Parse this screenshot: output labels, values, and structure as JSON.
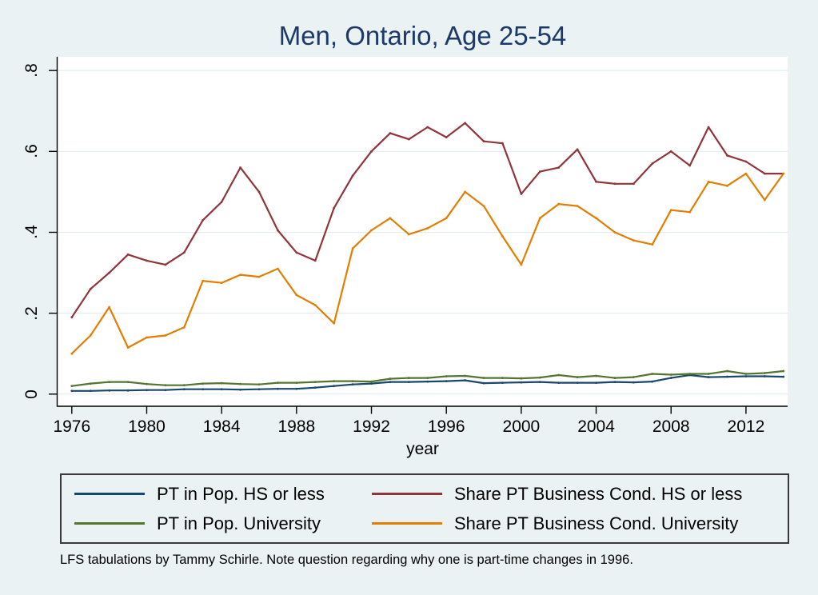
{
  "page": {
    "background": "#EAF2F3",
    "plot_background": "#FFFFFF",
    "grid_color": "#E3EDEF",
    "axis_color": "#000000",
    "title_color": "#1B3A6B",
    "legend_border_color": "#3A3A3A"
  },
  "footnote": "LFS tabulations by Tammy Schirle. Note question regarding why one is part-time changes in 1996.",
  "chart_data": {
    "type": "line",
    "title": "Men, Ontario, Age 25-54",
    "xlabel": "year",
    "ylabel": "",
    "xlim": [
      1975.3,
      2014.5
    ],
    "ylim": [
      0,
      0.8
    ],
    "grid": true,
    "legend_position": "bottom-box-2col",
    "x_ticks": [
      1976,
      1980,
      1984,
      1988,
      1992,
      1996,
      2000,
      2004,
      2008,
      2012
    ],
    "y_ticks": [
      0,
      0.2,
      0.4,
      0.6,
      0.8
    ],
    "y_tick_labels": [
      "0",
      ".2",
      ".4",
      ".6",
      ".8"
    ],
    "x": [
      1976,
      1977,
      1978,
      1979,
      1980,
      1981,
      1982,
      1983,
      1984,
      1985,
      1986,
      1987,
      1988,
      1989,
      1990,
      1991,
      1992,
      1993,
      1994,
      1995,
      1996,
      1997,
      1998,
      1999,
      2000,
      2001,
      2002,
      2003,
      2004,
      2005,
      2006,
      2007,
      2008,
      2009,
      2010,
      2011,
      2012,
      2013,
      2014
    ],
    "series": [
      {
        "name": "PT in Pop. HS or less",
        "color": "#1A476F",
        "values": [
          0.008,
          0.008,
          0.009,
          0.009,
          0.01,
          0.01,
          0.012,
          0.012,
          0.012,
          0.011,
          0.012,
          0.013,
          0.013,
          0.016,
          0.02,
          0.024,
          0.026,
          0.03,
          0.03,
          0.031,
          0.032,
          0.034,
          0.027,
          0.028,
          0.029,
          0.03,
          0.028,
          0.028,
          0.028,
          0.03,
          0.029,
          0.031,
          0.04,
          0.047,
          0.042,
          0.043,
          0.044,
          0.044,
          0.043
        ]
      },
      {
        "name": "Share PT Business Cond. HS or less",
        "color": "#90353B",
        "values": [
          0.19,
          0.26,
          0.3,
          0.345,
          0.33,
          0.32,
          0.35,
          0.43,
          0.475,
          0.56,
          0.5,
          0.405,
          0.35,
          0.33,
          0.46,
          0.54,
          0.6,
          0.645,
          0.63,
          0.66,
          0.635,
          0.67,
          0.625,
          0.62,
          0.495,
          0.55,
          0.56,
          0.605,
          0.525,
          0.52,
          0.52,
          0.57,
          0.6,
          0.565,
          0.66,
          0.59,
          0.575,
          0.545,
          0.545
        ]
      },
      {
        "name": "PT in Pop. University",
        "color": "#55752F",
        "values": [
          0.02,
          0.026,
          0.03,
          0.03,
          0.025,
          0.022,
          0.022,
          0.026,
          0.027,
          0.025,
          0.024,
          0.028,
          0.028,
          0.03,
          0.032,
          0.032,
          0.031,
          0.038,
          0.04,
          0.04,
          0.044,
          0.045,
          0.04,
          0.04,
          0.039,
          0.041,
          0.047,
          0.042,
          0.045,
          0.04,
          0.042,
          0.05,
          0.048,
          0.05,
          0.05,
          0.057,
          0.05,
          0.052,
          0.057
        ]
      },
      {
        "name": "Share PT Business Cond. University",
        "color": "#E37E00",
        "values": [
          0.1,
          0.145,
          0.215,
          0.115,
          0.14,
          0.145,
          0.165,
          0.28,
          0.275,
          0.295,
          0.29,
          0.31,
          0.245,
          0.22,
          0.175,
          0.36,
          0.405,
          0.435,
          0.395,
          0.41,
          0.435,
          0.5,
          0.465,
          0.39,
          0.32,
          0.435,
          0.47,
          0.465,
          0.435,
          0.4,
          0.38,
          0.37,
          0.455,
          0.45,
          0.525,
          0.515,
          0.545,
          0.48,
          0.545
        ]
      }
    ]
  }
}
